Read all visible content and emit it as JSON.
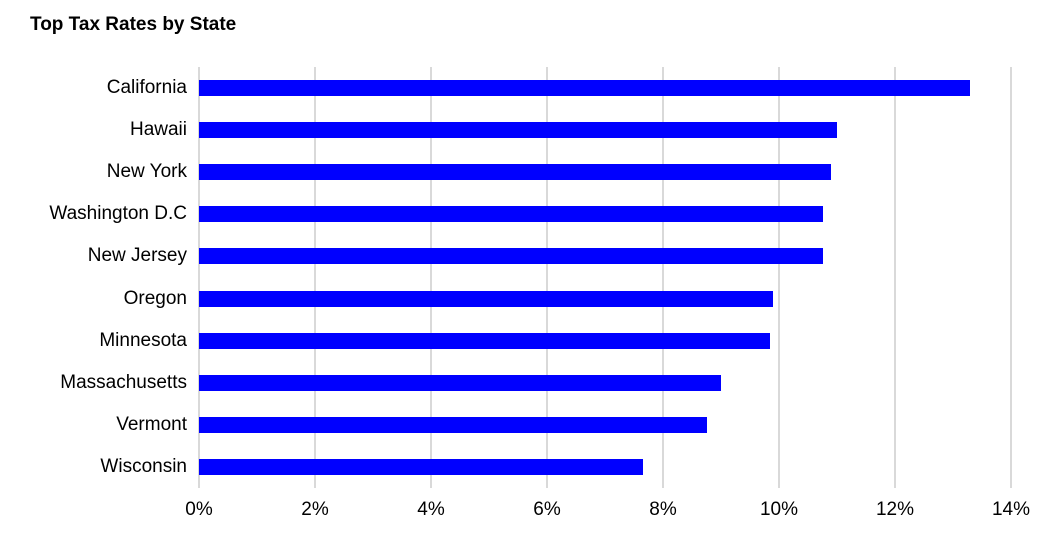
{
  "chart_data": {
    "type": "bar",
    "orientation": "horizontal",
    "title": "Top Tax Rates by State",
    "categories": [
      "California",
      "Hawaii",
      "New York",
      "Washington D.C",
      "New Jersey",
      "Oregon",
      "Minnesota",
      "Massachusetts",
      "Vermont",
      "Wisconsin"
    ],
    "values": [
      13.3,
      11.0,
      10.9,
      10.75,
      10.75,
      9.9,
      9.85,
      9.0,
      8.75,
      7.65
    ],
    "value_unit": "%",
    "xlabel": "",
    "ylabel": "",
    "xlim": [
      0,
      14
    ],
    "x_ticks": [
      0,
      2,
      4,
      6,
      8,
      10,
      12,
      14
    ],
    "x_tick_labels": [
      "0%",
      "2%",
      "4%",
      "6%",
      "8%",
      "10%",
      "12%",
      "14%"
    ],
    "grid": "vertical-gridlines-on",
    "legend": "none",
    "bar_color": "#0000FF",
    "gridline_color": "#D9D9D9",
    "text_color": "#000000",
    "background_color": "#FFFFFF"
  }
}
